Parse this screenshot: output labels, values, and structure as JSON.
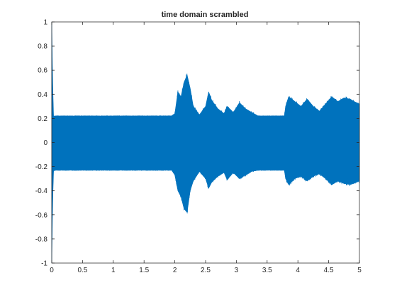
{
  "chart_data": {
    "type": "area",
    "title": "time domain scrambled",
    "xlabel": "",
    "ylabel": "",
    "xlim": [
      0,
      5
    ],
    "ylim": [
      -1,
      1
    ],
    "x_ticks": [
      0,
      0.5,
      1,
      1.5,
      2,
      2.5,
      3,
      3.5,
      4,
      4.5,
      5
    ],
    "x_tick_labels": [
      "0",
      "0.5",
      "1",
      "1.5",
      "2",
      "2.5",
      "3",
      "3.5",
      "4",
      "4.5",
      "5"
    ],
    "y_ticks": [
      -1,
      -0.8,
      -0.6,
      -0.4,
      -0.2,
      0,
      0.2,
      0.4,
      0.6,
      0.8,
      1
    ],
    "y_tick_labels": [
      "-1",
      "-0.8",
      "-0.6",
      "-0.4",
      "-0.2",
      "0",
      "0.2",
      "0.4",
      "0.6",
      "0.8",
      "1"
    ],
    "grid": false,
    "color": "#0072BD",
    "series": [
      {
        "x": [
          0,
          0.01,
          0.02,
          0.03,
          0.05,
          1.9,
          1.95,
          2.0,
          2.05,
          2.1,
          2.15,
          2.2,
          2.25,
          2.3,
          2.4,
          2.5,
          2.55,
          2.6,
          2.7,
          2.8,
          2.85,
          2.95,
          3.05,
          3.15,
          3.25,
          3.35,
          3.45,
          3.55,
          3.65,
          3.78,
          3.8,
          3.85,
          3.95,
          4.05,
          4.15,
          4.25,
          4.35,
          4.45,
          4.55,
          4.65,
          4.75,
          4.85,
          4.95,
          5.0
        ],
        "upper": [
          1.0,
          0.65,
          0.4,
          0.22,
          0.22,
          0.22,
          0.22,
          0.24,
          0.42,
          0.38,
          0.5,
          0.56,
          0.45,
          0.3,
          0.23,
          0.3,
          0.42,
          0.35,
          0.28,
          0.24,
          0.3,
          0.25,
          0.33,
          0.28,
          0.25,
          0.22,
          0.22,
          0.22,
          0.22,
          0.22,
          0.3,
          0.38,
          0.34,
          0.3,
          0.36,
          0.3,
          0.26,
          0.32,
          0.38,
          0.34,
          0.37,
          0.36,
          0.33,
          0.32
        ],
        "lower": [
          -1.0,
          -0.65,
          -0.4,
          -0.24,
          -0.23,
          -0.23,
          -0.23,
          -0.27,
          -0.4,
          -0.45,
          -0.55,
          -0.58,
          -0.4,
          -0.32,
          -0.24,
          -0.3,
          -0.38,
          -0.33,
          -0.28,
          -0.25,
          -0.31,
          -0.25,
          -0.3,
          -0.27,
          -0.24,
          -0.23,
          -0.23,
          -0.23,
          -0.23,
          -0.23,
          -0.3,
          -0.35,
          -0.3,
          -0.28,
          -0.32,
          -0.28,
          -0.26,
          -0.3,
          -0.35,
          -0.32,
          -0.34,
          -0.35,
          -0.33,
          -0.32
        ]
      }
    ]
  }
}
